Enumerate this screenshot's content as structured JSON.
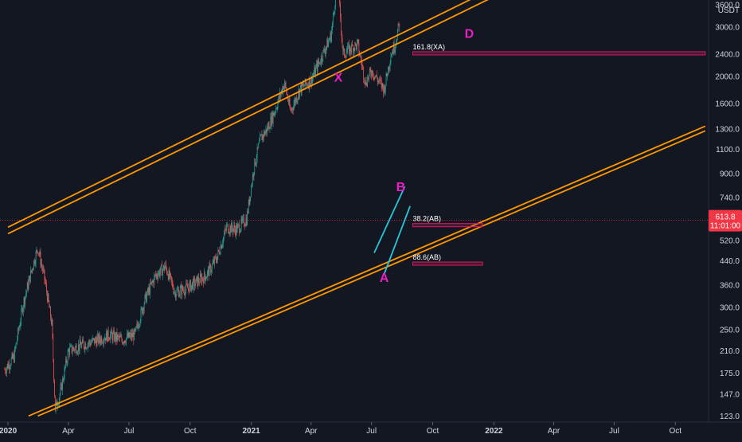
{
  "chart_data": {
    "type": "candlestick",
    "symbol_quote": "USDT",
    "y_scale": "log",
    "ylim": [
      117,
      3750
    ],
    "xlim": [
      "2019-12-20",
      "2022-11-20"
    ],
    "y_ticks": [
      3600.0,
      3000.0,
      2400.0,
      2000.0,
      1600.0,
      1300.0,
      1100.0,
      900.0,
      740.0,
      520.0,
      440.0,
      360.0,
      300.0,
      250.0,
      210.0,
      175.0,
      147.0,
      123.0
    ],
    "x_ticks": [
      {
        "label": "2020",
        "date": "2020-01-01",
        "bold": true
      },
      {
        "label": "Apr",
        "date": "2020-04-01",
        "bold": false
      },
      {
        "label": "Jul",
        "date": "2020-07-01",
        "bold": false
      },
      {
        "label": "Oct",
        "date": "2020-10-01",
        "bold": false
      },
      {
        "label": "2021",
        "date": "2021-01-01",
        "bold": true
      },
      {
        "label": "Apr",
        "date": "2021-04-01",
        "bold": false
      },
      {
        "label": "Jul",
        "date": "2021-07-01",
        "bold": false
      },
      {
        "label": "Oct",
        "date": "2021-10-01",
        "bold": false
      },
      {
        "label": "2022",
        "date": "2022-01-01",
        "bold": true
      },
      {
        "label": "Apr",
        "date": "2022-04-01",
        "bold": false
      },
      {
        "label": "Jul",
        "date": "2022-07-01",
        "bold": false
      },
      {
        "label": "Oct",
        "date": "2022-10-01",
        "bold": false
      }
    ],
    "current_price": {
      "price": "613.8",
      "countdown": "11:01:00",
      "value": 613.8
    },
    "price_path": [
      [
        "2019-12-27",
        180
      ],
      [
        "2020-01-10",
        200
      ],
      [
        "2020-01-24",
        310
      ],
      [
        "2020-02-07",
        420
      ],
      [
        "2020-02-15",
        490
      ],
      [
        "2020-02-25",
        380
      ],
      [
        "2020-03-07",
        260
      ],
      [
        "2020-03-12",
        130
      ],
      [
        "2020-03-20",
        150
      ],
      [
        "2020-04-01",
        210
      ],
      [
        "2020-04-20",
        220
      ],
      [
        "2020-05-15",
        230
      ],
      [
        "2020-06-01",
        240
      ],
      [
        "2020-06-20",
        230
      ],
      [
        "2020-07-10",
        240
      ],
      [
        "2020-07-25",
        320
      ],
      [
        "2020-08-10",
        390
      ],
      [
        "2020-08-25",
        420
      ],
      [
        "2020-09-08",
        340
      ],
      [
        "2020-09-25",
        350
      ],
      [
        "2020-10-10",
        370
      ],
      [
        "2020-10-25",
        390
      ],
      [
        "2020-11-10",
        450
      ],
      [
        "2020-11-25",
        580
      ],
      [
        "2020-12-10",
        570
      ],
      [
        "2020-12-25",
        620
      ],
      [
        "2021-01-05",
        950
      ],
      [
        "2021-01-15",
        1200
      ],
      [
        "2021-01-25",
        1300
      ],
      [
        "2021-02-05",
        1500
      ],
      [
        "2021-02-20",
        1900
      ],
      [
        "2021-03-01",
        1500
      ],
      [
        "2021-03-15",
        1800
      ],
      [
        "2021-04-01",
        1950
      ],
      [
        "2021-04-15",
        2300
      ],
      [
        "2021-05-01",
        2800
      ],
      [
        "2021-05-08",
        3900
      ],
      [
        "2021-05-12",
        4100
      ],
      [
        "2021-05-19",
        2400
      ],
      [
        "2021-05-28",
        2500
      ],
      [
        "2021-06-10",
        2600
      ],
      [
        "2021-06-22",
        1900
      ],
      [
        "2021-07-01",
        2100
      ],
      [
        "2021-07-20",
        1800
      ],
      [
        "2021-07-30",
        2400
      ],
      [
        "2021-08-05",
        2600
      ],
      [
        "2021-08-12",
        3100
      ]
    ],
    "channel_lines": [
      {
        "name": "upper-channel-1",
        "color": "#ff9800",
        "points": [
          [
            "2020-01-01",
            580
          ],
          [
            "2022-01-15",
            4300
          ]
        ]
      },
      {
        "name": "upper-channel-2",
        "color": "#ff9800",
        "points": [
          [
            "2020-01-01",
            550
          ],
          [
            "2022-01-15",
            4000
          ]
        ]
      },
      {
        "name": "lower-channel-1",
        "color": "#ff9800",
        "points": [
          [
            "2020-02-01",
            123
          ],
          [
            "2022-11-15",
            1330
          ]
        ]
      },
      {
        "name": "lower-channel-2",
        "color": "#ff9800",
        "points": [
          [
            "2020-02-15",
            123
          ],
          [
            "2022-11-15",
            1280
          ]
        ]
      }
    ],
    "ab_channel": [
      {
        "name": "ab-channel-upper",
        "color": "#26c6da",
        "points": [
          [
            "2021-07-05",
            470
          ],
          [
            "2021-08-20",
            810
          ]
        ]
      },
      {
        "name": "ab-channel-lower",
        "color": "#26c6da",
        "points": [
          [
            "2021-07-20",
            395
          ],
          [
            "2021-08-28",
            690
          ]
        ]
      }
    ],
    "levels": [
      {
        "label": "161.8(XA)",
        "price": 2420,
        "start": "2021-09-01",
        "end": "2022-11-15"
      },
      {
        "label": "38.2(AB)",
        "price": 590,
        "start": "2021-09-01",
        "end": "2021-12-15"
      },
      {
        "label": "88.6(AB)",
        "price": 430,
        "start": "2021-09-01",
        "end": "2021-12-15"
      }
    ],
    "points": [
      {
        "label": "X",
        "date": "2021-05-12",
        "price": 1920
      },
      {
        "label": "A",
        "date": "2021-07-20",
        "price": 370
      },
      {
        "label": "B",
        "date": "2021-08-14",
        "price": 780
      },
      {
        "label": "D",
        "date": "2021-11-25",
        "price": 2750
      }
    ],
    "colors": {
      "background": "#131722",
      "up": "#26a69a",
      "down": "#ef5350",
      "channel": "#ff9800",
      "ab_channel": "#26c6da",
      "pattern_label": "#e91ec4",
      "level_box": "#d81b60",
      "price_tag": "#f23645"
    }
  }
}
